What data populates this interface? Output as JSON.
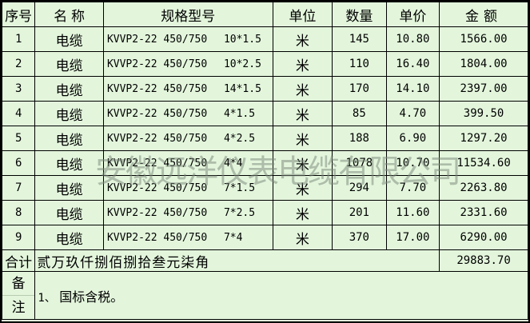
{
  "colors": {
    "background": "#e3f6dc",
    "border": "#000000",
    "watermark_gray": "#7b897b",
    "remark_divider": "#b7cbb1"
  },
  "watermark": {
    "text": "安徽远洋仪表电缆有限公司"
  },
  "table": {
    "headers": {
      "no": "序号",
      "name": "名 称",
      "spec": "规格型号",
      "unit": "单位",
      "qty": "数量",
      "price": "单价",
      "amount": "金额"
    },
    "rows": [
      {
        "no": "1",
        "name": "电缆",
        "spec_model": "KVVP2-22 450/750",
        "spec_size": "10*1.5",
        "unit": "米",
        "qty": "145",
        "price": "10.80",
        "amount": "1566.00"
      },
      {
        "no": "2",
        "name": "电缆",
        "spec_model": "KVVP2-22 450/750",
        "spec_size": "10*2.5",
        "unit": "米",
        "qty": "110",
        "price": "16.40",
        "amount": "1804.00"
      },
      {
        "no": "3",
        "name": "电缆",
        "spec_model": "KVVP2-22 450/750",
        "spec_size": "14*1.5",
        "unit": "米",
        "qty": "170",
        "price": "14.10",
        "amount": "2397.00"
      },
      {
        "no": "4",
        "name": "电缆",
        "spec_model": "KVVP2-22 450/750",
        "spec_size": "4*1.5",
        "unit": "米",
        "qty": "85",
        "price": "4.70",
        "amount": "399.50"
      },
      {
        "no": "5",
        "name": "电缆",
        "spec_model": "KVVP2-22 450/750",
        "spec_size": "4*2.5",
        "unit": "米",
        "qty": "188",
        "price": "6.90",
        "amount": "1297.20"
      },
      {
        "no": "6",
        "name": "电缆",
        "spec_model": "KVVP2-22 450/750",
        "spec_size": "4*4",
        "unit": "米",
        "qty": "1078",
        "price": "10.70",
        "amount": "11534.60"
      },
      {
        "no": "7",
        "name": "电缆",
        "spec_model": "KVVP2-22 450/750",
        "spec_size": "7*1.5",
        "unit": "米",
        "qty": "294",
        "price": "7.70",
        "amount": "2263.80"
      },
      {
        "no": "8",
        "name": "电缆",
        "spec_model": "KVVP2-22 450/750",
        "spec_size": "7*2.5",
        "unit": "米",
        "qty": "201",
        "price": "11.60",
        "amount": "2331.60"
      },
      {
        "no": "9",
        "name": "电缆",
        "spec_model": "KVVP2-22 450/750",
        "spec_size": "7*4",
        "unit": "米",
        "qty": "370",
        "price": "17.00",
        "amount": "6290.00"
      }
    ],
    "total": {
      "label": "合计",
      "amount_in_words": "贰万玖仟捌佰捌拾叁元柒角",
      "amount": "29883.70"
    },
    "remark": {
      "label_line1": "备",
      "label_line2": "注",
      "text_lead": "1、",
      "text_body": " 国标含税。"
    }
  }
}
